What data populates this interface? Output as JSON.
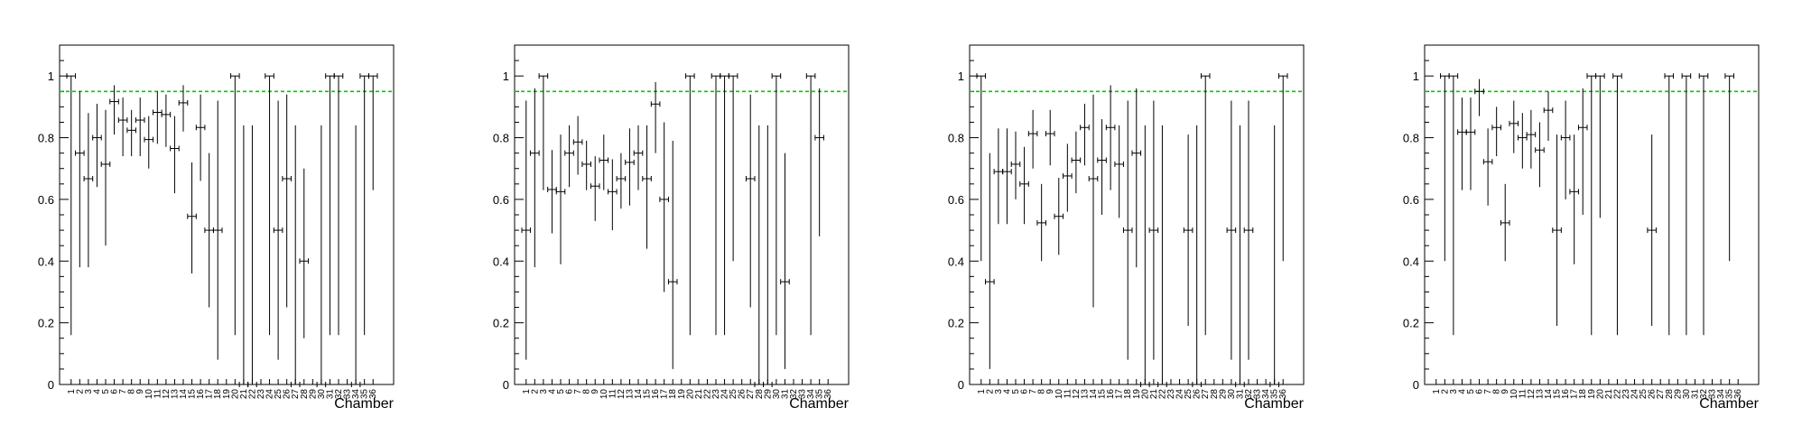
{
  "chart_data": [
    {
      "type": "scatter",
      "xlabel": "Chamber",
      "ylim": [
        0,
        1.1
      ],
      "yticks": [
        "0",
        "0.2",
        "0.4",
        "0.6",
        "0.8",
        "1"
      ],
      "yticks_values": [
        0,
        0.2,
        0.4,
        0.6,
        0.8,
        1
      ],
      "reference_line": {
        "y": 0.95,
        "color": "#00cc00"
      },
      "categories": [
        "1",
        "2",
        "3",
        "4",
        "5",
        "6",
        "7",
        "8",
        "9",
        "10",
        "11",
        "12",
        "13",
        "14",
        "15",
        "16",
        "17",
        "18",
        "19",
        "20",
        "21",
        "22",
        "23",
        "24",
        "25",
        "26",
        "27",
        "28",
        "29",
        "30",
        "31",
        "32",
        "33",
        "34",
        "35",
        "36"
      ],
      "points": [
        {
          "x": 1,
          "y": 1.0,
          "lo": 0.16,
          "hi": 1.0
        },
        {
          "x": 2,
          "y": 0.75,
          "lo": 0.38,
          "hi": 0.95
        },
        {
          "x": 3,
          "y": 0.667,
          "lo": 0.38,
          "hi": 0.88
        },
        {
          "x": 4,
          "y": 0.8,
          "lo": 0.64,
          "hi": 0.91
        },
        {
          "x": 5,
          "y": 0.714,
          "lo": 0.45,
          "hi": 0.89
        },
        {
          "x": 6,
          "y": 0.917,
          "lo": 0.81,
          "hi": 0.97
        },
        {
          "x": 7,
          "y": 0.857,
          "lo": 0.74,
          "hi": 0.93
        },
        {
          "x": 8,
          "y": 0.824,
          "lo": 0.74,
          "hi": 0.89
        },
        {
          "x": 9,
          "y": 0.857,
          "lo": 0.74,
          "hi": 0.93
        },
        {
          "x": 10,
          "y": 0.794,
          "lo": 0.7,
          "hi": 0.87
        },
        {
          "x": 11,
          "y": 0.882,
          "lo": 0.78,
          "hi": 0.95
        },
        {
          "x": 12,
          "y": 0.875,
          "lo": 0.77,
          "hi": 0.94
        },
        {
          "x": 13,
          "y": 0.765,
          "lo": 0.62,
          "hi": 0.87
        },
        {
          "x": 14,
          "y": 0.913,
          "lo": 0.82,
          "hi": 0.97
        },
        {
          "x": 15,
          "y": 0.545,
          "lo": 0.36,
          "hi": 0.72
        },
        {
          "x": 16,
          "y": 0.833,
          "lo": 0.66,
          "hi": 0.94
        },
        {
          "x": 17,
          "y": 0.5,
          "lo": 0.25,
          "hi": 0.75
        },
        {
          "x": 18,
          "y": 0.5,
          "lo": 0.08,
          "hi": 0.92
        },
        {
          "x": 20,
          "y": 1.0,
          "lo": 0.16,
          "hi": 1.0
        },
        {
          "x": 21,
          "y": 0.0,
          "lo": 0.0,
          "hi": 0.84
        },
        {
          "x": 22,
          "y": 0.0,
          "lo": 0.0,
          "hi": 0.84
        },
        {
          "x": 24,
          "y": 1.0,
          "lo": 0.16,
          "hi": 1.0
        },
        {
          "x": 25,
          "y": 0.5,
          "lo": 0.08,
          "hi": 0.92
        },
        {
          "x": 26,
          "y": 0.667,
          "lo": 0.25,
          "hi": 0.94
        },
        {
          "x": 27,
          "y": 0.0,
          "lo": 0.0,
          "hi": 0.84
        },
        {
          "x": 28,
          "y": 0.4,
          "lo": 0.15,
          "hi": 0.7
        },
        {
          "x": 30,
          "y": 0.0,
          "lo": 0.0,
          "hi": 0.84
        },
        {
          "x": 31,
          "y": 1.0,
          "lo": 0.16,
          "hi": 1.0
        },
        {
          "x": 32,
          "y": 1.0,
          "lo": 0.16,
          "hi": 1.0
        },
        {
          "x": 34,
          "y": 0.0,
          "lo": 0.0,
          "hi": 0.84
        },
        {
          "x": 35,
          "y": 1.0,
          "lo": 0.16,
          "hi": 1.0
        },
        {
          "x": 36,
          "y": 1.0,
          "lo": 0.63,
          "hi": 1.0
        }
      ]
    },
    {
      "type": "scatter",
      "xlabel": "Chamber",
      "ylim": [
        0,
        1.1
      ],
      "yticks": [
        "0",
        "0.2",
        "0.4",
        "0.6",
        "0.8",
        "1"
      ],
      "yticks_values": [
        0,
        0.2,
        0.4,
        0.6,
        0.8,
        1
      ],
      "reference_line": {
        "y": 0.95,
        "color": "#00cc00"
      },
      "categories": [
        "1",
        "2",
        "3",
        "4",
        "5",
        "6",
        "7",
        "8",
        "9",
        "10",
        "11",
        "12",
        "13",
        "14",
        "15",
        "16",
        "17",
        "18",
        "19",
        "20",
        "21",
        "22",
        "23",
        "24",
        "25",
        "26",
        "27",
        "28",
        "29",
        "30",
        "31",
        "32",
        "33",
        "34",
        "35",
        "36"
      ],
      "points": [
        {
          "x": 1,
          "y": 0.5,
          "lo": 0.08,
          "hi": 0.92
        },
        {
          "x": 2,
          "y": 0.75,
          "lo": 0.38,
          "hi": 0.96
        },
        {
          "x": 3,
          "y": 1.0,
          "lo": 0.63,
          "hi": 1.0
        },
        {
          "x": 4,
          "y": 0.632,
          "lo": 0.49,
          "hi": 0.76
        },
        {
          "x": 5,
          "y": 0.625,
          "lo": 0.39,
          "hi": 0.81
        },
        {
          "x": 6,
          "y": 0.75,
          "lo": 0.64,
          "hi": 0.84
        },
        {
          "x": 7,
          "y": 0.786,
          "lo": 0.68,
          "hi": 0.87
        },
        {
          "x": 8,
          "y": 0.714,
          "lo": 0.63,
          "hi": 0.79
        },
        {
          "x": 9,
          "y": 0.643,
          "lo": 0.53,
          "hi": 0.74
        },
        {
          "x": 10,
          "y": 0.727,
          "lo": 0.63,
          "hi": 0.81
        },
        {
          "x": 11,
          "y": 0.625,
          "lo": 0.5,
          "hi": 0.73
        },
        {
          "x": 12,
          "y": 0.667,
          "lo": 0.57,
          "hi": 0.75
        },
        {
          "x": 13,
          "y": 0.72,
          "lo": 0.58,
          "hi": 0.83
        },
        {
          "x": 14,
          "y": 0.75,
          "lo": 0.63,
          "hi": 0.84
        },
        {
          "x": 15,
          "y": 0.667,
          "lo": 0.44,
          "hi": 0.84
        },
        {
          "x": 16,
          "y": 0.909,
          "lo": 0.75,
          "hi": 0.98
        },
        {
          "x": 17,
          "y": 0.6,
          "lo": 0.3,
          "hi": 0.85
        },
        {
          "x": 18,
          "y": 0.333,
          "lo": 0.05,
          "hi": 0.79
        },
        {
          "x": 20,
          "y": 1.0,
          "lo": 0.16,
          "hi": 1.0
        },
        {
          "x": 23,
          "y": 1.0,
          "lo": 0.16,
          "hi": 1.0
        },
        {
          "x": 24,
          "y": 1.0,
          "lo": 0.16,
          "hi": 1.0
        },
        {
          "x": 25,
          "y": 1.0,
          "lo": 0.4,
          "hi": 1.0
        },
        {
          "x": 27,
          "y": 0.667,
          "lo": 0.25,
          "hi": 0.94
        },
        {
          "x": 28,
          "y": 0.0,
          "lo": 0.0,
          "hi": 0.84
        },
        {
          "x": 29,
          "y": 0.0,
          "lo": 0.0,
          "hi": 0.84
        },
        {
          "x": 30,
          "y": 1.0,
          "lo": 0.16,
          "hi": 1.0
        },
        {
          "x": 31,
          "y": 0.333,
          "lo": 0.05,
          "hi": 0.75
        },
        {
          "x": 34,
          "y": 1.0,
          "lo": 0.16,
          "hi": 1.0
        },
        {
          "x": 35,
          "y": 0.8,
          "lo": 0.48,
          "hi": 0.96
        }
      ]
    },
    {
      "type": "scatter",
      "xlabel": "Chamber",
      "ylim": [
        0,
        1.1
      ],
      "yticks": [
        "0",
        "0.2",
        "0.4",
        "0.6",
        "0.8",
        "1"
      ],
      "yticks_values": [
        0,
        0.2,
        0.4,
        0.6,
        0.8,
        1
      ],
      "reference_line": {
        "y": 0.95,
        "color": "#00cc00"
      },
      "categories": [
        "1",
        "2",
        "3",
        "4",
        "5",
        "6",
        "7",
        "8",
        "9",
        "10",
        "11",
        "12",
        "13",
        "14",
        "15",
        "16",
        "17",
        "18",
        "19",
        "20",
        "21",
        "22",
        "23",
        "24",
        "25",
        "26",
        "27",
        "28",
        "29",
        "30",
        "31",
        "32",
        "33",
        "34",
        "35",
        "36"
      ],
      "points": [
        {
          "x": 1,
          "y": 1.0,
          "lo": 0.4,
          "hi": 1.0
        },
        {
          "x": 2,
          "y": 0.333,
          "lo": 0.05,
          "hi": 0.75
        },
        {
          "x": 3,
          "y": 0.69,
          "lo": 0.52,
          "hi": 0.83
        },
        {
          "x": 4,
          "y": 0.69,
          "lo": 0.52,
          "hi": 0.83
        },
        {
          "x": 5,
          "y": 0.714,
          "lo": 0.6,
          "hi": 0.82
        },
        {
          "x": 6,
          "y": 0.65,
          "lo": 0.52,
          "hi": 0.77
        },
        {
          "x": 7,
          "y": 0.813,
          "lo": 0.7,
          "hi": 0.89
        },
        {
          "x": 8,
          "y": 0.524,
          "lo": 0.4,
          "hi": 0.65
        },
        {
          "x": 9,
          "y": 0.813,
          "lo": 0.71,
          "hi": 0.89
        },
        {
          "x": 10,
          "y": 0.545,
          "lo": 0.42,
          "hi": 0.67
        },
        {
          "x": 11,
          "y": 0.676,
          "lo": 0.56,
          "hi": 0.78
        },
        {
          "x": 12,
          "y": 0.727,
          "lo": 0.62,
          "hi": 0.82
        },
        {
          "x": 13,
          "y": 0.833,
          "lo": 0.71,
          "hi": 0.91
        },
        {
          "x": 14,
          "y": 0.667,
          "lo": 0.25,
          "hi": 0.94
        },
        {
          "x": 15,
          "y": 0.727,
          "lo": 0.55,
          "hi": 0.86
        },
        {
          "x": 16,
          "y": 0.833,
          "lo": 0.63,
          "hi": 0.97
        },
        {
          "x": 17,
          "y": 0.714,
          "lo": 0.54,
          "hi": 0.84
        },
        {
          "x": 18,
          "y": 0.5,
          "lo": 0.08,
          "hi": 0.92
        },
        {
          "x": 19,
          "y": 0.75,
          "lo": 0.38,
          "hi": 0.96
        },
        {
          "x": 20,
          "y": 0.0,
          "lo": 0.0,
          "hi": 0.84
        },
        {
          "x": 21,
          "y": 0.5,
          "lo": 0.08,
          "hi": 0.92
        },
        {
          "x": 22,
          "y": 0.0,
          "lo": 0.0,
          "hi": 0.84
        },
        {
          "x": 25,
          "y": 0.5,
          "lo": 0.19,
          "hi": 0.81
        },
        {
          "x": 26,
          "y": 0.0,
          "lo": 0.0,
          "hi": 0.84
        },
        {
          "x": 27,
          "y": 1.0,
          "lo": 0.16,
          "hi": 1.0
        },
        {
          "x": 30,
          "y": 0.5,
          "lo": 0.08,
          "hi": 0.92
        },
        {
          "x": 31,
          "y": 0.0,
          "lo": 0.0,
          "hi": 0.84
        },
        {
          "x": 32,
          "y": 0.5,
          "lo": 0.08,
          "hi": 0.92
        },
        {
          "x": 35,
          "y": 0.0,
          "lo": 0.0,
          "hi": 0.84
        },
        {
          "x": 36,
          "y": 1.0,
          "lo": 0.4,
          "hi": 1.0
        }
      ]
    },
    {
      "type": "scatter",
      "xlabel": "Chamber",
      "ylim": [
        0,
        1.1
      ],
      "yticks": [
        "0",
        "0.2",
        "0.4",
        "0.6",
        "0.8",
        "1"
      ],
      "yticks_values": [
        0,
        0.2,
        0.4,
        0.6,
        0.8,
        1
      ],
      "reference_line": {
        "y": 0.95,
        "color": "#00cc00"
      },
      "categories": [
        "1",
        "2",
        "3",
        "4",
        "5",
        "6",
        "7",
        "8",
        "9",
        "10",
        "11",
        "12",
        "13",
        "14",
        "15",
        "16",
        "17",
        "18",
        "19",
        "20",
        "21",
        "22",
        "23",
        "24",
        "25",
        "26",
        "27",
        "28",
        "29",
        "30",
        "31",
        "32",
        "33",
        "34",
        "35",
        "36"
      ],
      "points": [
        {
          "x": 2,
          "y": 1.0,
          "lo": 0.4,
          "hi": 1.0
        },
        {
          "x": 3,
          "y": 1.0,
          "lo": 0.16,
          "hi": 1.0
        },
        {
          "x": 4,
          "y": 0.818,
          "lo": 0.63,
          "hi": 0.93
        },
        {
          "x": 5,
          "y": 0.818,
          "lo": 0.63,
          "hi": 0.93
        },
        {
          "x": 6,
          "y": 0.95,
          "lo": 0.87,
          "hi": 0.99
        },
        {
          "x": 7,
          "y": 0.722,
          "lo": 0.58,
          "hi": 0.83
        },
        {
          "x": 8,
          "y": 0.833,
          "lo": 0.74,
          "hi": 0.9
        },
        {
          "x": 9,
          "y": 0.524,
          "lo": 0.4,
          "hi": 0.65
        },
        {
          "x": 10,
          "y": 0.846,
          "lo": 0.75,
          "hi": 0.92
        },
        {
          "x": 11,
          "y": 0.8,
          "lo": 0.7,
          "hi": 0.88
        },
        {
          "x": 12,
          "y": 0.81,
          "lo": 0.7,
          "hi": 0.89
        },
        {
          "x": 13,
          "y": 0.76,
          "lo": 0.64,
          "hi": 0.85
        },
        {
          "x": 14,
          "y": 0.889,
          "lo": 0.79,
          "hi": 0.95
        },
        {
          "x": 15,
          "y": 0.5,
          "lo": 0.19,
          "hi": 0.81
        },
        {
          "x": 16,
          "y": 0.8,
          "lo": 0.6,
          "hi": 0.92
        },
        {
          "x": 17,
          "y": 0.625,
          "lo": 0.39,
          "hi": 0.81
        },
        {
          "x": 18,
          "y": 0.833,
          "lo": 0.55,
          "hi": 0.96
        },
        {
          "x": 19,
          "y": 1.0,
          "lo": 0.16,
          "hi": 1.0
        },
        {
          "x": 20,
          "y": 1.0,
          "lo": 0.54,
          "hi": 1.0
        },
        {
          "x": 22,
          "y": 1.0,
          "lo": 0.16,
          "hi": 1.0
        },
        {
          "x": 26,
          "y": 0.5,
          "lo": 0.19,
          "hi": 0.81
        },
        {
          "x": 28,
          "y": 1.0,
          "lo": 0.16,
          "hi": 1.0
        },
        {
          "x": 30,
          "y": 1.0,
          "lo": 0.16,
          "hi": 1.0
        },
        {
          "x": 32,
          "y": 1.0,
          "lo": 0.16,
          "hi": 1.0
        },
        {
          "x": 35,
          "y": 1.0,
          "lo": 0.4,
          "hi": 1.0
        }
      ]
    }
  ]
}
